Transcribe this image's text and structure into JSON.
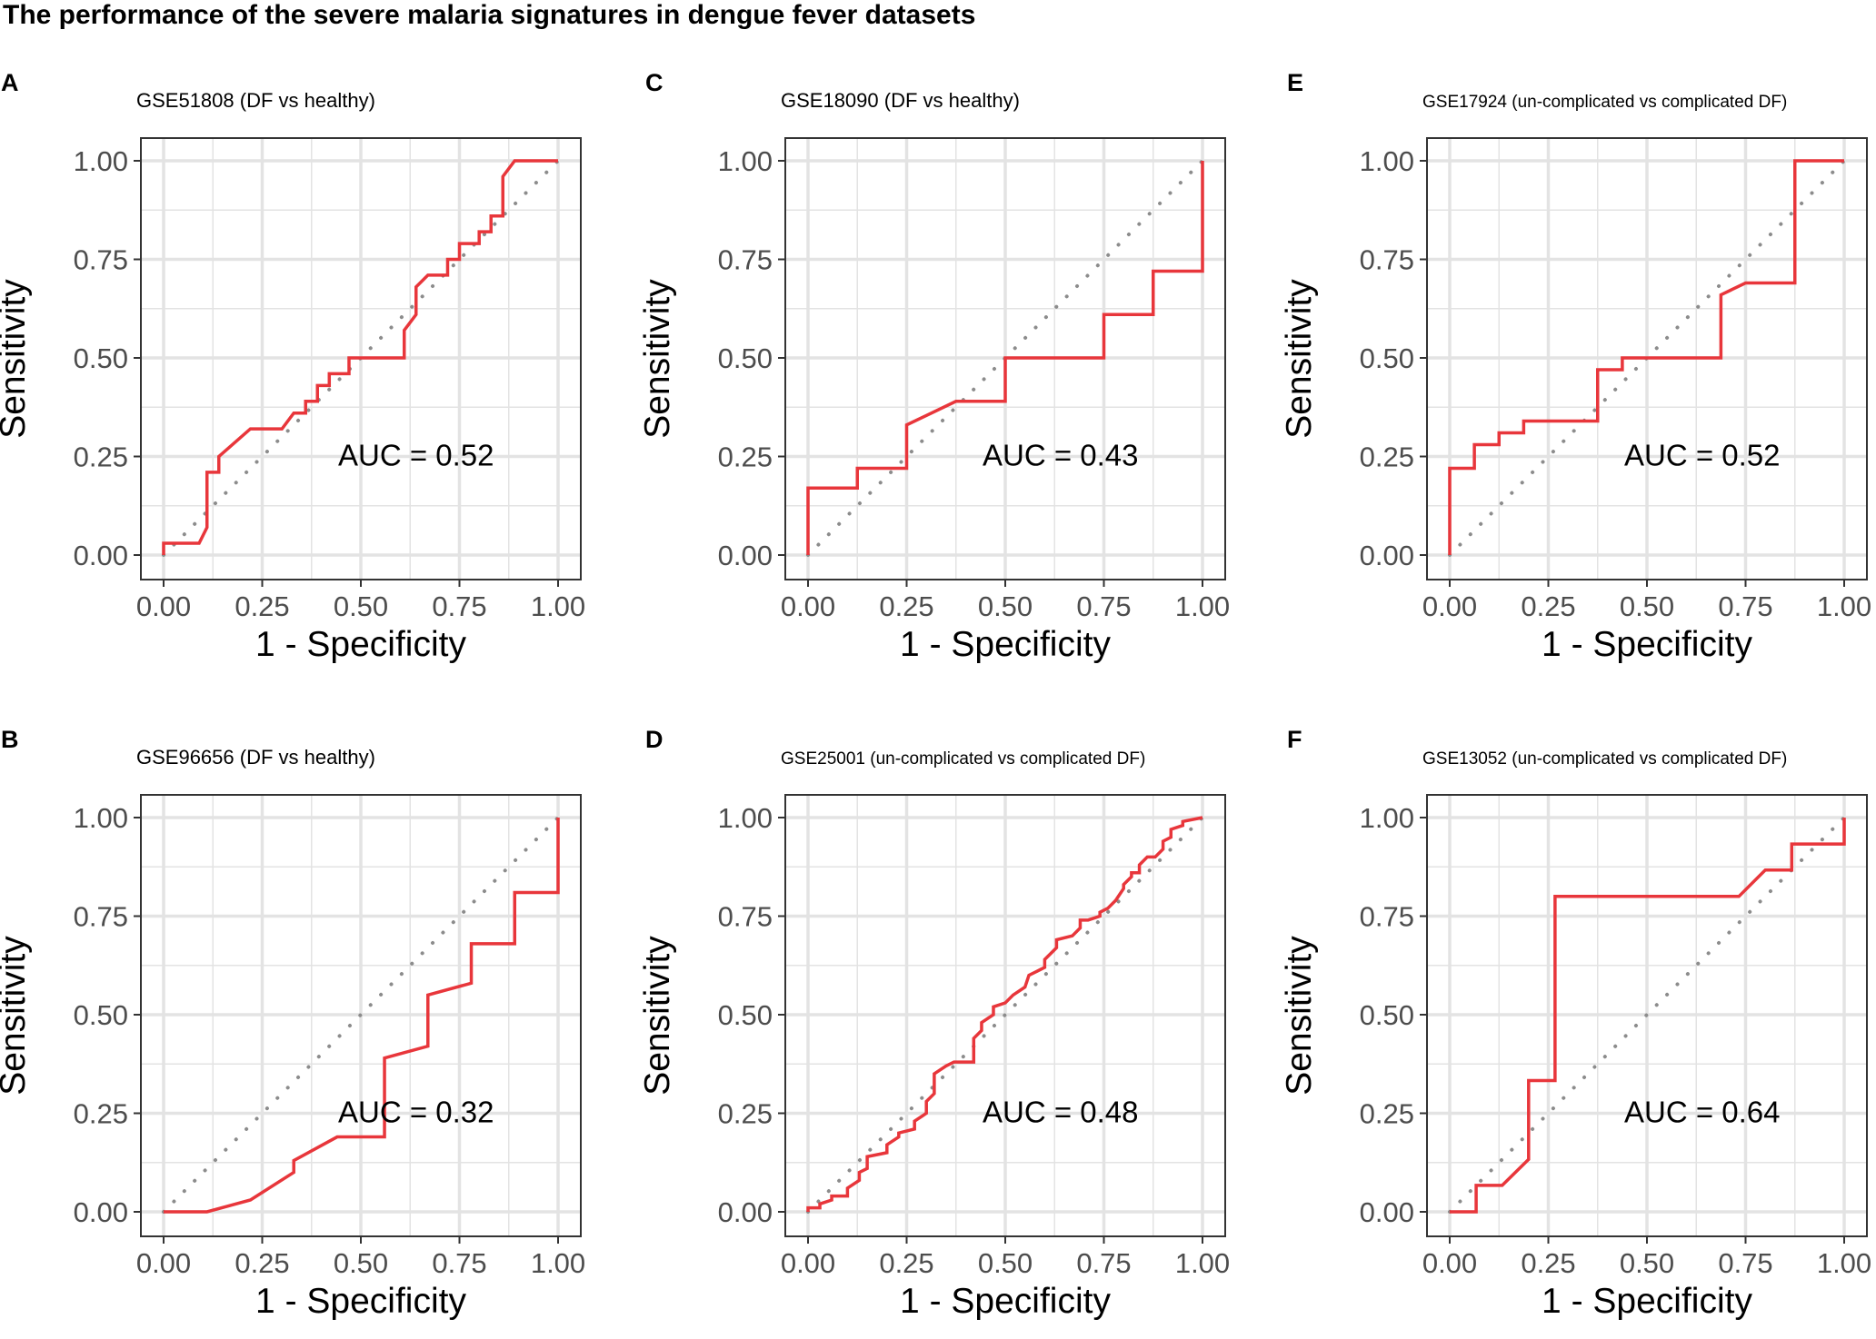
{
  "figure": {
    "title": "The performance of the severe malaria signatures in dengue fever datasets"
  },
  "colors": {
    "roc_line": "#e8363b",
    "diagonal": "#8c8c8c",
    "grid": "#e3e3e3",
    "panel_border": "#333333",
    "text": "#000000",
    "tick_text": "#4d4d4d"
  },
  "chart_data": [
    {
      "panel": "A",
      "type": "line",
      "title": "GSE51808 (DF vs healthy)",
      "xlabel": "1 - Specificity",
      "ylabel": "Sensitivity",
      "xlim": [
        0,
        1
      ],
      "ylim": [
        0,
        1
      ],
      "xticks": [
        "0.00",
        "0.25",
        "0.50",
        "0.75",
        "1.00"
      ],
      "yticks": [
        "0.00",
        "0.25",
        "0.50",
        "0.75",
        "1.00"
      ],
      "annotation": "AUC = 0.52",
      "series": [
        {
          "name": "ROC",
          "x": [
            0,
            0,
            0.09,
            0.11,
            0.11,
            0.14,
            0.14,
            0.22,
            0.3,
            0.33,
            0.36,
            0.36,
            0.39,
            0.39,
            0.42,
            0.42,
            0.47,
            0.47,
            0.55,
            0.55,
            0.61,
            0.61,
            0.64,
            0.64,
            0.67,
            0.67,
            0.72,
            0.72,
            0.75,
            0.75,
            0.8,
            0.8,
            0.83,
            0.83,
            0.86,
            0.86,
            0.89,
            0.89,
            1
          ],
          "y": [
            0,
            0.03,
            0.03,
            0.07,
            0.21,
            0.21,
            0.25,
            0.32,
            0.32,
            0.36,
            0.36,
            0.39,
            0.39,
            0.43,
            0.43,
            0.46,
            0.46,
            0.5,
            0.5,
            0.5,
            0.5,
            0.57,
            0.61,
            0.68,
            0.71,
            0.71,
            0.71,
            0.75,
            0.75,
            0.79,
            0.79,
            0.82,
            0.82,
            0.86,
            0.86,
            0.96,
            1.0,
            1.0,
            1.0
          ]
        },
        {
          "name": "reference",
          "x": [
            0,
            1
          ],
          "y": [
            0,
            1
          ]
        }
      ]
    },
    {
      "panel": "B",
      "type": "line",
      "title": "GSE96656 (DF vs healthy)",
      "xlabel": "1 - Specificity",
      "ylabel": "Sensitivity",
      "xlim": [
        0,
        1
      ],
      "ylim": [
        0,
        1
      ],
      "xticks": [
        "0.00",
        "0.25",
        "0.50",
        "0.75",
        "1.00"
      ],
      "yticks": [
        "0.00",
        "0.25",
        "0.50",
        "0.75",
        "1.00"
      ],
      "annotation": "AUC = 0.32",
      "series": [
        {
          "name": "ROC",
          "x": [
            0,
            0.11,
            0.22,
            0.33,
            0.33,
            0.44,
            0.56,
            0.56,
            0.67,
            0.67,
            0.78,
            0.78,
            0.89,
            0.89,
            1.0,
            1.0
          ],
          "y": [
            0,
            0,
            0.03,
            0.1,
            0.13,
            0.19,
            0.19,
            0.39,
            0.42,
            0.55,
            0.58,
            0.68,
            0.68,
            0.81,
            0.81,
            1.0
          ]
        },
        {
          "name": "reference",
          "x": [
            0,
            1
          ],
          "y": [
            0,
            1
          ]
        }
      ]
    },
    {
      "panel": "C",
      "type": "line",
      "title": "GSE18090 (DF vs healthy)",
      "xlabel": "1 - Specificity",
      "ylabel": "Sensitivity",
      "xlim": [
        0,
        1
      ],
      "ylim": [
        0,
        1
      ],
      "xticks": [
        "0.00",
        "0.25",
        "0.50",
        "0.75",
        "1.00"
      ],
      "yticks": [
        "0.00",
        "0.25",
        "0.50",
        "0.75",
        "1.00"
      ],
      "annotation": "AUC = 0.43",
      "series": [
        {
          "name": "ROC",
          "x": [
            0,
            0,
            0.125,
            0.125,
            0.25,
            0.25,
            0.375,
            0.5,
            0.5,
            0.75,
            0.75,
            0.875,
            0.875,
            1.0,
            1.0
          ],
          "y": [
            0,
            0.17,
            0.17,
            0.22,
            0.22,
            0.33,
            0.39,
            0.39,
            0.5,
            0.5,
            0.61,
            0.61,
            0.72,
            0.72,
            1.0
          ]
        },
        {
          "name": "reference",
          "x": [
            0,
            1
          ],
          "y": [
            0,
            1
          ]
        }
      ]
    },
    {
      "panel": "D",
      "type": "line",
      "title": "GSE25001 (un-complicated vs complicated DF)",
      "xlabel": "1 - Specificity",
      "ylabel": "Sensitivity",
      "xlim": [
        0,
        1
      ],
      "ylim": [
        0,
        1
      ],
      "xticks": [
        "0.00",
        "0.25",
        "0.50",
        "0.75",
        "1.00"
      ],
      "yticks": [
        "0.00",
        "0.25",
        "0.50",
        "0.75",
        "1.00"
      ],
      "annotation": "AUC = 0.48",
      "series": [
        {
          "name": "ROC",
          "x": [
            0,
            0,
            0.03,
            0.03,
            0.06,
            0.06,
            0.1,
            0.1,
            0.13,
            0.13,
            0.15,
            0.15,
            0.2,
            0.2,
            0.23,
            0.23,
            0.27,
            0.27,
            0.3,
            0.3,
            0.32,
            0.32,
            0.35,
            0.35,
            0.37,
            0.37,
            0.42,
            0.42,
            0.44,
            0.44,
            0.47,
            0.47,
            0.5,
            0.52,
            0.55,
            0.56,
            0.58,
            0.6,
            0.6,
            0.63,
            0.63,
            0.67,
            0.67,
            0.69,
            0.69,
            0.71,
            0.74,
            0.74,
            0.76,
            0.78,
            0.8,
            0.8,
            0.82,
            0.82,
            0.84,
            0.84,
            0.86,
            0.88,
            0.9,
            0.9,
            0.92,
            0.92,
            0.95,
            0.95,
            1.0
          ],
          "y": [
            0,
            0.01,
            0.01,
            0.02,
            0.03,
            0.04,
            0.04,
            0.06,
            0.08,
            0.1,
            0.11,
            0.14,
            0.15,
            0.17,
            0.19,
            0.2,
            0.21,
            0.23,
            0.25,
            0.28,
            0.3,
            0.35,
            0.37,
            0.37,
            0.38,
            0.38,
            0.38,
            0.44,
            0.46,
            0.48,
            0.5,
            0.52,
            0.53,
            0.55,
            0.57,
            0.6,
            0.61,
            0.62,
            0.64,
            0.67,
            0.69,
            0.7,
            0.7,
            0.72,
            0.74,
            0.74,
            0.75,
            0.76,
            0.77,
            0.79,
            0.82,
            0.83,
            0.85,
            0.86,
            0.86,
            0.88,
            0.9,
            0.9,
            0.92,
            0.94,
            0.95,
            0.97,
            0.98,
            0.99,
            1.0
          ]
        },
        {
          "name": "reference",
          "x": [
            0,
            1
          ],
          "y": [
            0,
            1
          ]
        }
      ]
    },
    {
      "panel": "E",
      "type": "line",
      "title": "GSE17924 (un-complicated vs complicated DF)",
      "xlabel": "1 - Specificity",
      "ylabel": "Sensitivity",
      "xlim": [
        0,
        1
      ],
      "ylim": [
        0,
        1
      ],
      "xticks": [
        "0.00",
        "0.25",
        "0.50",
        "0.75",
        "1.00"
      ],
      "yticks": [
        "0.00",
        "0.25",
        "0.50",
        "0.75",
        "1.00"
      ],
      "annotation": "AUC = 0.52",
      "series": [
        {
          "name": "ROC",
          "x": [
            0,
            0,
            0.0625,
            0.0625,
            0.125,
            0.125,
            0.1875,
            0.1875,
            0.375,
            0.375,
            0.4375,
            0.4375,
            0.6875,
            0.6875,
            0.75,
            0.875,
            0.875,
            1.0
          ],
          "y": [
            0,
            0.22,
            0.22,
            0.28,
            0.28,
            0.31,
            0.31,
            0.34,
            0.34,
            0.47,
            0.47,
            0.5,
            0.5,
            0.66,
            0.69,
            0.69,
            1.0,
            1.0
          ]
        },
        {
          "name": "reference",
          "x": [
            0,
            1
          ],
          "y": [
            0,
            1
          ]
        }
      ]
    },
    {
      "panel": "F",
      "type": "line",
      "title": "GSE13052 (un-complicated vs complicated DF)",
      "xlabel": "1 - Specificity",
      "ylabel": "Sensitivity",
      "xlim": [
        0,
        1
      ],
      "ylim": [
        0,
        1
      ],
      "xticks": [
        "0.00",
        "0.25",
        "0.50",
        "0.75",
        "1.00"
      ],
      "yticks": [
        "0.00",
        "0.25",
        "0.50",
        "0.75",
        "1.00"
      ],
      "annotation": "AUC = 0.64",
      "series": [
        {
          "name": "ROC",
          "x": [
            0,
            0.067,
            0.067,
            0.133,
            0.2,
            0.2,
            0.267,
            0.267,
            0.733,
            0.8,
            0.867,
            0.867,
            1.0,
            1.0
          ],
          "y": [
            0,
            0,
            0.067,
            0.067,
            0.133,
            0.333,
            0.333,
            0.8,
            0.8,
            0.867,
            0.867,
            0.933,
            0.933,
            1.0
          ]
        },
        {
          "name": "reference",
          "x": [
            0,
            1
          ],
          "y": [
            0,
            1
          ]
        }
      ]
    }
  ]
}
